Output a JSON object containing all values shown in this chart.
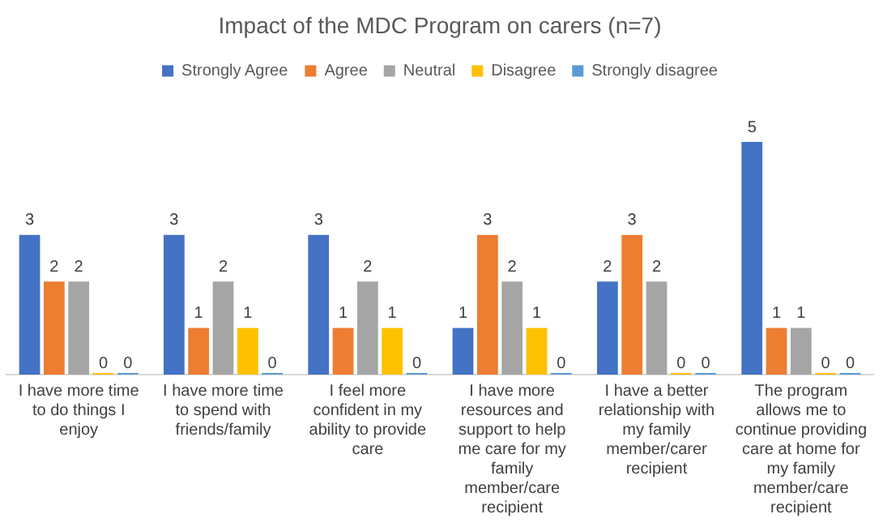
{
  "chart_data": {
    "type": "bar",
    "title": "Impact of the MDC Program on carers (n=7)",
    "categories": [
      "I have more time to do things I enjoy",
      "I have more time to spend with friends/family",
      "I feel more confident in my ability to provide care",
      "I have more resources and support to help me care for my family member/care recipient",
      "I have a better relationship with my family member/carer recipient",
      "The program allows me to continue providing care at home for my family member/care recipient"
    ],
    "series": [
      {
        "name": "Strongly Agree",
        "color": "#4472c4",
        "values": [
          3,
          3,
          3,
          1,
          2,
          5
        ]
      },
      {
        "name": "Agree",
        "color": "#ed7d31",
        "values": [
          2,
          1,
          1,
          3,
          3,
          1
        ]
      },
      {
        "name": "Neutral",
        "color": "#a5a5a5",
        "values": [
          2,
          2,
          2,
          2,
          2,
          1
        ]
      },
      {
        "name": "Disagree",
        "color": "#ffc000",
        "values": [
          0,
          1,
          1,
          1,
          0,
          0
        ]
      },
      {
        "name": "Strongly disagree",
        "color": "#5b9bd5",
        "values": [
          0,
          0,
          0,
          0,
          0,
          0
        ]
      }
    ],
    "data_labels": true,
    "grid": false,
    "legend": "top"
  }
}
